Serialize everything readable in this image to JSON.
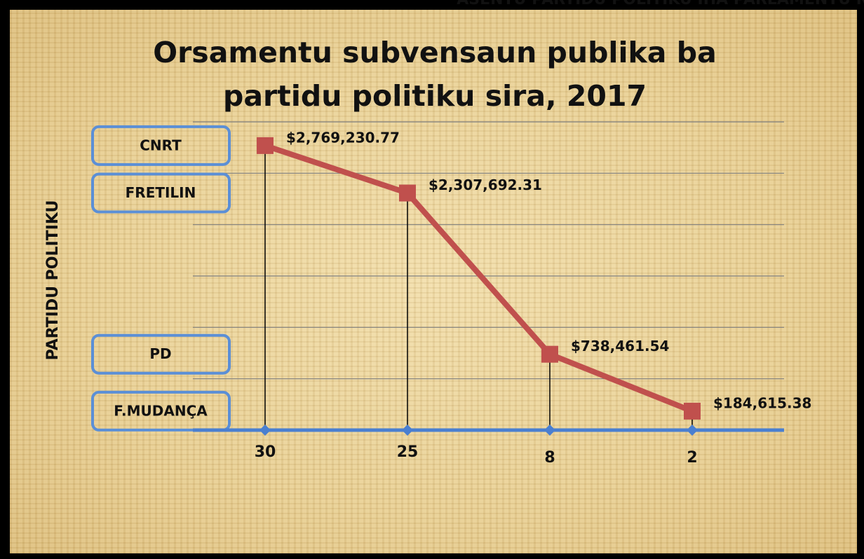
{
  "chart_data": {
    "type": "line",
    "title": "Orsamentu subvensaun publika ba partidu politiku sira, 2017",
    "x_label": "ASENTU PARTIDU POLITIKU IHA PARLAMENTU NACIONAL",
    "y_label": "PARTIDU POLITIKU",
    "categories": [
      "30",
      "25",
      "8",
      "2"
    ],
    "party_labels": [
      "CNRT",
      "FRETILIN",
      "PD",
      "F.MUDANÇA"
    ],
    "series": [
      {
        "color": "#c0504d",
        "values": [
          2769230.77,
          2307692.31,
          738461.54,
          184615.38
        ],
        "value_labels": [
          "$2,769,230.77",
          "$2,307,692.31",
          "$738,461.54",
          "$184,615.38"
        ]
      }
    ],
    "ylim": [
      0,
      3000000
    ],
    "yticks": [
      0,
      500000,
      1000000,
      1500000,
      2000000,
      2500000,
      3000000
    ],
    "grid": true
  }
}
